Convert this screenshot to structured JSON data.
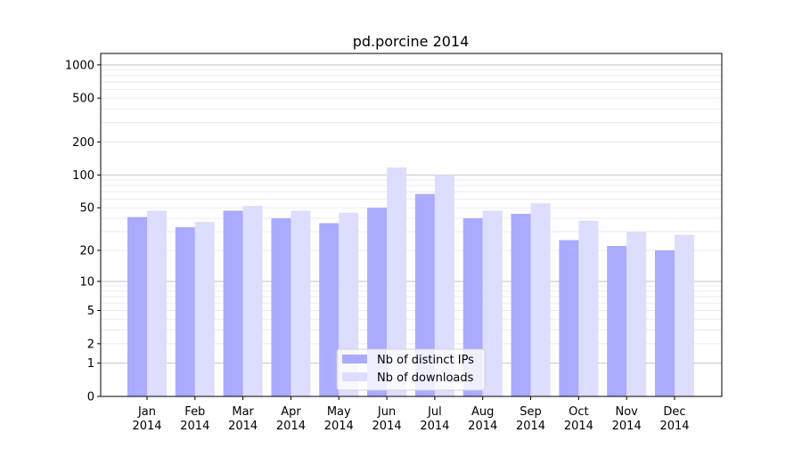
{
  "chart_data": {
    "type": "bar",
    "title": "pd.porcine 2014",
    "xlabel": "",
    "ylabel": "",
    "yscale": "log10(y+1)",
    "ylim": [
      0,
      1270
    ],
    "yticks": [
      0,
      1,
      2,
      5,
      10,
      20,
      50,
      100,
      200,
      500,
      1000
    ],
    "grid": true,
    "legend_position": "lower center",
    "categories": [
      "Jan\n2014",
      "Feb\n2014",
      "Mar\n2014",
      "Apr\n2014",
      "May\n2014",
      "Jun\n2014",
      "Jul\n2014",
      "Aug\n2014",
      "Sep\n2014",
      "Oct\n2014",
      "Nov\n2014",
      "Dec\n2014"
    ],
    "series": [
      {
        "name": "Nb of distinct IPs",
        "color": "#aaaaff",
        "values": [
          41,
          33,
          47,
          40,
          36,
          50,
          67,
          40,
          44,
          25,
          22,
          20
        ]
      },
      {
        "name": "Nb of downloads",
        "color": "#ddddff",
        "values": [
          47,
          37,
          52,
          47,
          45,
          117,
          100,
          47,
          55,
          38,
          30,
          28
        ]
      }
    ]
  }
}
